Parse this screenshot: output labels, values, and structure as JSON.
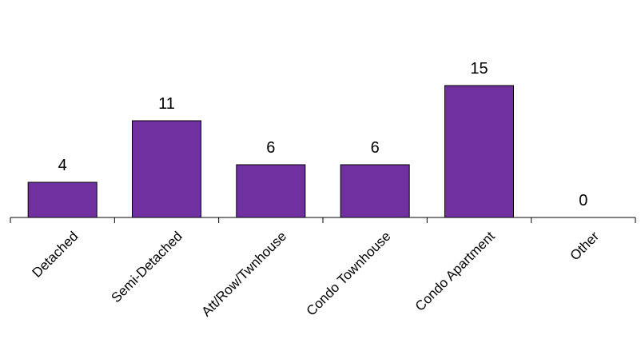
{
  "chart_data": {
    "type": "bar",
    "categories": [
      "Detached",
      "Semi-Detached",
      "Att/Row/Twnhouse",
      "Condo Townhouse",
      "Condo Apartment",
      "Other"
    ],
    "values": [
      4,
      11,
      6,
      6,
      15,
      0
    ],
    "data_labels": [
      "4",
      "11",
      "6",
      "6",
      "15",
      "0"
    ],
    "ylim": [
      0,
      16
    ],
    "bar_color": "#7030A0",
    "grid": false,
    "legend": "none"
  }
}
